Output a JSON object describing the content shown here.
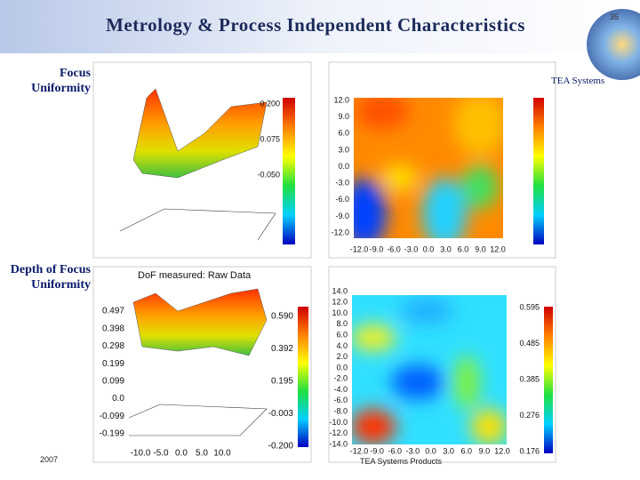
{
  "header": {
    "title": "Metrology & Process Independent Characteristics",
    "page_number": "35",
    "brand": "TEA Systems"
  },
  "sections": [
    "Focus Uniformity",
    "Depth of Focus Uniformity"
  ],
  "plots": [
    {
      "colorbar_ticks": [
        "0.200",
        "0.075",
        "-0.050"
      ]
    },
    {
      "y_ticks": [
        "12.0",
        "9.0",
        "6.0",
        "3.0",
        "0.0",
        "-3.0",
        "-6.0",
        "-9.0",
        "-12.0"
      ],
      "x_ticks": [
        "-12.0",
        "-9.0",
        "-6.0",
        "-3.0",
        "0.0",
        "3.0",
        "6.0",
        "9.0",
        "12.0"
      ]
    },
    {
      "title": "DoF measured: Raw Data",
      "z_ticks": [
        "0.497",
        "0.398",
        "0.298",
        "0.199",
        "0.099",
        "0.0",
        "-0.099",
        "-0.199"
      ],
      "colorbar_ticks": [
        "0.590",
        "0.392",
        "0.195",
        "-0.003",
        "-0.200"
      ],
      "x_ticks": [
        "-10.0",
        "-5.0",
        "0.0",
        "5.0",
        "10.0"
      ]
    },
    {
      "y_ticks": [
        "14.0",
        "12.0",
        "10.0",
        "8.0",
        "6.0",
        "4.0",
        "2.0",
        "0.0",
        "-2.0",
        "-4.0",
        "-6.0",
        "-8.0",
        "-10.0",
        "-12.0",
        "-14.0"
      ],
      "x_ticks": [
        "-12.0",
        "-9.0",
        "-6.0",
        "-3.0",
        "0.0",
        "3.0",
        "6.0",
        "9.0",
        "12.0"
      ],
      "colorbar_ticks": [
        "0.595",
        "0.485",
        "0.385",
        "0.276",
        "0.176"
      ]
    }
  ],
  "footer": {
    "year": "2007",
    "credit": "TEA Systems Products"
  }
}
